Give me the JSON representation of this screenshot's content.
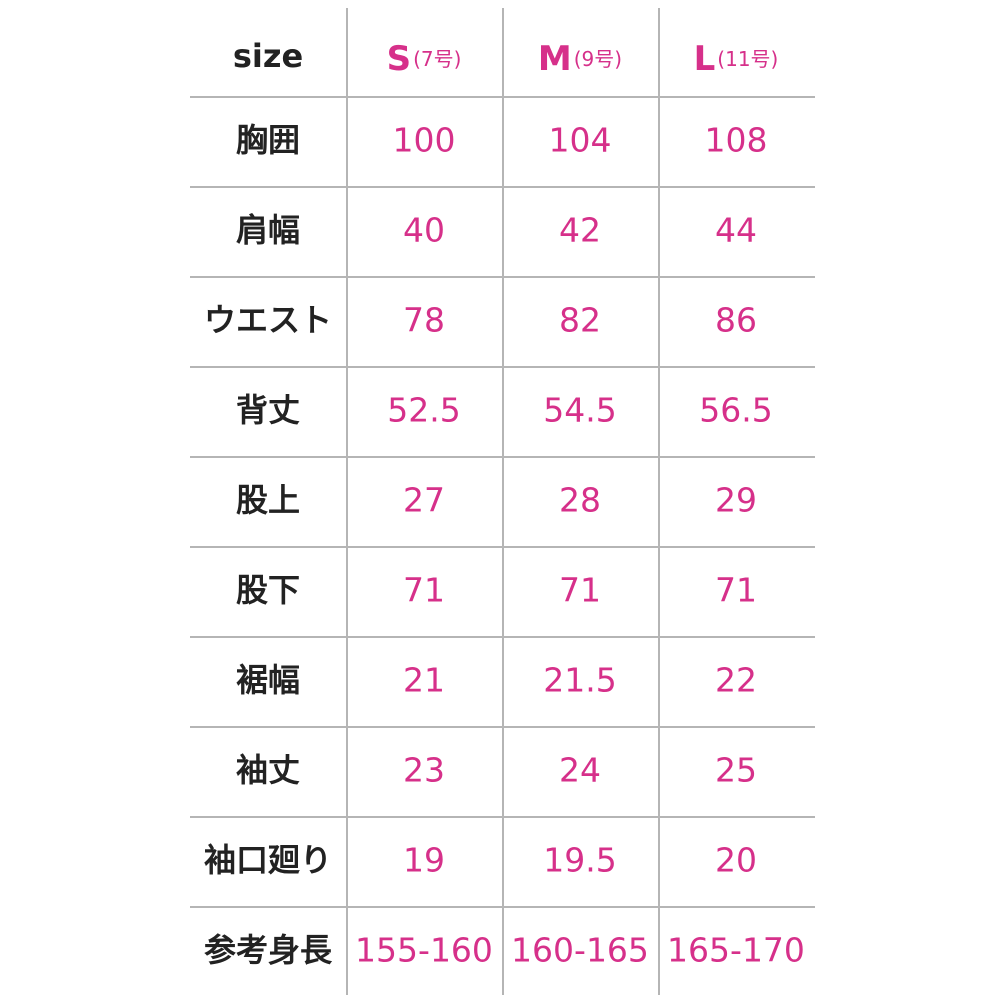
{
  "table": {
    "header": [
      {
        "text": "size"
      },
      {
        "text": "S",
        "note": "(7号)"
      },
      {
        "text": "M",
        "note": "(9号)"
      },
      {
        "text": "L",
        "note": "(11号)"
      }
    ],
    "rows": [
      [
        "胸囲",
        "100",
        "104",
        "108"
      ],
      [
        "肩幅",
        "40",
        "42",
        "44"
      ],
      [
        "ウエスト",
        "78",
        "82",
        "86"
      ],
      [
        "背丈",
        "52.5",
        "54.5",
        "56.5"
      ],
      [
        "股上",
        "27",
        "28",
        "29"
      ],
      [
        "股下",
        "71",
        "71",
        "71"
      ],
      [
        "裾幅",
        "21",
        "21.5",
        "22"
      ],
      [
        "袖丈",
        "23",
        "24",
        "25"
      ],
      [
        "袖口廻り",
        "19",
        "19.5",
        "20"
      ],
      [
        "参考身長",
        "155-160",
        "160-165",
        "165-170"
      ]
    ]
  }
}
